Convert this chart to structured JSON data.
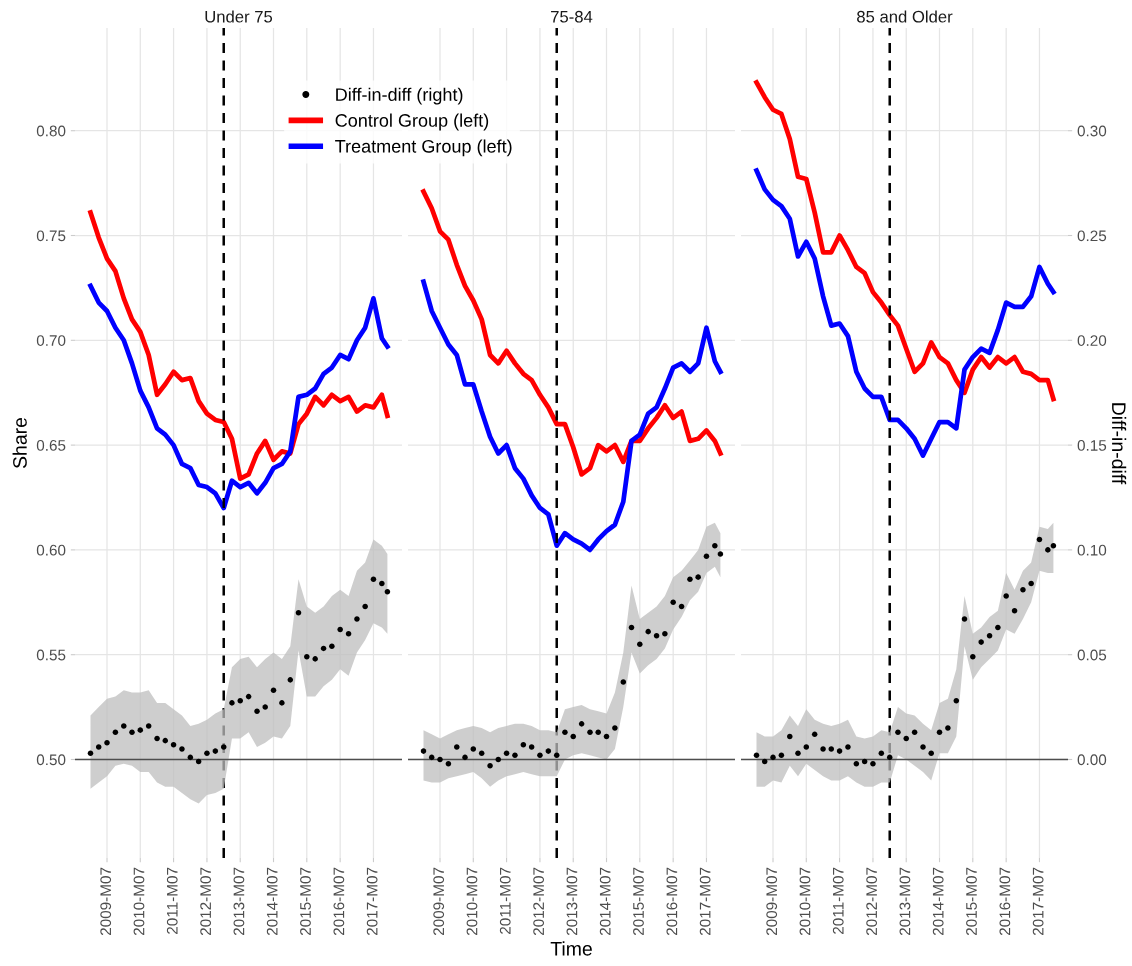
{
  "chart_data": [
    {
      "type": "line",
      "title": "Under 75",
      "ylabel": "Share",
      "legend": "top right",
      "grid": true,
      "tick_labels": [
        "x",
        "y"
      ],
      "x": [
        "2009-01",
        "2009-04",
        "2009-07",
        "2009-10",
        "2010-01",
        "2010-04",
        "2010-07",
        "2010-10",
        "2011-01",
        "2011-04",
        "2011-07",
        "2011-10",
        "2012-01",
        "2012-04",
        "2012-07",
        "2012-10",
        "2013-01",
        "2013-04",
        "2013-07",
        "2013-10",
        "2014-01",
        "2014-04",
        "2014-07",
        "2014-10",
        "2015-01",
        "2015-04",
        "2015-07",
        "2015-10",
        "2016-01",
        "2016-04",
        "2016-07",
        "2016-10",
        "2017-01",
        "2017-04",
        "2017-07",
        "2017-10",
        "2017-12"
      ],
      "series": [
        {
          "name": "Diff-in-diff (right)",
          "type": "scatter",
          "axis": "y2",
          "marker": "circle",
          "color": "#000000",
          "values": [
            0.003,
            0.006,
            0.008,
            0.013,
            0.016,
            0.013,
            0.014,
            0.016,
            0.01,
            0.009,
            0.007,
            0.005,
            0.001,
            -0.001,
            0.003,
            0.004,
            0.006,
            0.027,
            0.028,
            0.03,
            0.023,
            0.025,
            0.033,
            0.027,
            0.038,
            0.07,
            0.049,
            0.048,
            0.053,
            0.054,
            0.062,
            0.06,
            0.067,
            0.073,
            0.086,
            0.084,
            0.08
          ],
          "lower": [
            -0.014,
            -0.011,
            -0.008,
            -0.003,
            -0.002,
            -0.003,
            -0.006,
            -0.006,
            -0.011,
            -0.013,
            -0.013,
            -0.016,
            -0.019,
            -0.021,
            -0.017,
            -0.016,
            -0.014,
            0.01,
            0.01,
            0.013,
            0.006,
            0.008,
            0.011,
            0.01,
            0.016,
            0.052,
            0.03,
            0.03,
            0.035,
            0.038,
            0.043,
            0.04,
            0.051,
            0.057,
            0.065,
            0.063,
            0.06
          ],
          "upper": [
            0.021,
            0.025,
            0.029,
            0.03,
            0.033,
            0.032,
            0.032,
            0.033,
            0.027,
            0.027,
            0.024,
            0.021,
            0.016,
            0.017,
            0.019,
            0.022,
            0.024,
            0.044,
            0.048,
            0.049,
            0.044,
            0.048,
            0.051,
            0.048,
            0.054,
            0.086,
            0.073,
            0.07,
            0.073,
            0.078,
            0.081,
            0.078,
            0.09,
            0.094,
            0.105,
            0.102,
            0.098
          ]
        },
        {
          "name": "Control Group (left)",
          "color": "#ff0000",
          "values": [
            0.761,
            0.749,
            0.739,
            0.733,
            0.72,
            0.71,
            0.704,
            0.693,
            0.674,
            0.679,
            0.685,
            0.681,
            0.682,
            0.671,
            0.665,
            0.662,
            0.661,
            0.653,
            0.634,
            0.636,
            0.646,
            0.652,
            0.643,
            0.647,
            0.646,
            0.66,
            0.665,
            0.673,
            0.669,
            0.674,
            0.671,
            0.673,
            0.666,
            0.669,
            0.668,
            0.674,
            0.664
          ]
        },
        {
          "name": "Treatment Group (left)",
          "color": "#0000ff",
          "values": [
            0.726,
            0.718,
            0.714,
            0.706,
            0.7,
            0.689,
            0.676,
            0.668,
            0.658,
            0.655,
            0.65,
            0.641,
            0.639,
            0.631,
            0.63,
            0.627,
            0.62,
            0.633,
            0.63,
            0.632,
            0.627,
            0.632,
            0.639,
            0.641,
            0.647,
            0.673,
            0.674,
            0.677,
            0.684,
            0.687,
            0.693,
            0.691,
            0.7,
            0.706,
            0.72,
            0.701,
            0.697
          ]
        }
      ],
      "xlim": [
        "2008-07-15",
        "2018-05-10"
      ],
      "xticks": [
        {
          "value": "2009-07",
          "label": "2009-M07"
        },
        {
          "value": "2010-07",
          "label": "2010-M07"
        },
        {
          "value": "2011-07",
          "label": "2011-M07"
        },
        {
          "value": "2012-07",
          "label": "2012-M07"
        },
        {
          "value": "2013-07",
          "label": "2013-M07"
        },
        {
          "value": "2014-07",
          "label": "2014-M07"
        },
        {
          "value": "2015-07",
          "label": "2015-M07"
        },
        {
          "value": "2016-07",
          "label": "2016-M07"
        },
        {
          "value": "2017-07",
          "label": "2017-M07"
        }
      ],
      "ylim": [
        0.453,
        0.849
      ],
      "yticks": [
        {
          "value": 0.5,
          "label": "0.50"
        },
        {
          "value": 0.55,
          "label": "0.55"
        },
        {
          "value": 0.6,
          "label": "0.60"
        },
        {
          "value": 0.65,
          "label": "0.65"
        },
        {
          "value": 0.7,
          "label": "0.70"
        },
        {
          "value": 0.75,
          "label": "0.75"
        },
        {
          "value": 0.8,
          "label": "0.80"
        }
      ],
      "y2lim": [
        -0.047,
        0.349
      ],
      "ref_lines": [
        {
          "axis": "x",
          "value": "2013-01",
          "line_style": "dashed",
          "color": "#000000"
        },
        {
          "axis": "y2",
          "value": 0,
          "color": "#4d4d4d"
        }
      ]
    },
    {
      "type": "line",
      "title": "75-84",
      "xlabel": "Time",
      "grid": true,
      "tick_labels": [
        "x"
      ],
      "x": [
        "2009-01",
        "2009-04",
        "2009-07",
        "2009-10",
        "2010-01",
        "2010-04",
        "2010-07",
        "2010-10",
        "2011-01",
        "2011-04",
        "2011-07",
        "2011-10",
        "2012-01",
        "2012-04",
        "2012-07",
        "2012-10",
        "2013-01",
        "2013-04",
        "2013-07",
        "2013-10",
        "2014-01",
        "2014-04",
        "2014-07",
        "2014-10",
        "2015-01",
        "2015-04",
        "2015-07",
        "2015-10",
        "2016-01",
        "2016-04",
        "2016-07",
        "2016-10",
        "2017-01",
        "2017-04",
        "2017-07",
        "2017-10",
        "2017-12"
      ],
      "series": [
        {
          "type": "scatter",
          "axis": "y2",
          "marker": "circle",
          "color": "#000000",
          "values": [
            0.004,
            0.001,
            0.0,
            -0.002,
            0.006,
            0.001,
            0.005,
            0.003,
            -0.003,
            0.0,
            0.003,
            0.002,
            0.007,
            0.006,
            0.002,
            0.004,
            0.002,
            0.013,
            0.011,
            0.017,
            0.013,
            0.013,
            0.011,
            0.015,
            0.037,
            0.063,
            0.055,
            0.061,
            0.059,
            0.06,
            0.075,
            0.073,
            0.086,
            0.087,
            0.097,
            0.102,
            0.098
          ],
          "lower": [
            -0.01,
            -0.011,
            -0.011,
            -0.009,
            -0.008,
            -0.007,
            -0.006,
            -0.009,
            -0.013,
            -0.01,
            -0.008,
            -0.007,
            -0.006,
            -0.007,
            -0.008,
            -0.008,
            -0.008,
            0.0,
            0.002,
            0.003,
            0.002,
            0.001,
            0.0,
            0.005,
            0.025,
            0.051,
            0.041,
            0.045,
            0.048,
            0.053,
            0.062,
            0.068,
            0.076,
            0.08,
            0.089,
            0.092,
            0.087
          ],
          "upper": [
            0.014,
            0.012,
            0.01,
            0.012,
            0.014,
            0.015,
            0.016,
            0.015,
            0.013,
            0.015,
            0.016,
            0.017,
            0.017,
            0.016,
            0.014,
            0.014,
            0.013,
            0.024,
            0.025,
            0.026,
            0.024,
            0.023,
            0.022,
            0.032,
            0.051,
            0.083,
            0.067,
            0.07,
            0.073,
            0.078,
            0.087,
            0.09,
            0.095,
            0.1,
            0.111,
            0.113,
            0.108
          ]
        },
        {
          "color": "#ff0000",
          "values": [
            0.771,
            0.763,
            0.752,
            0.748,
            0.736,
            0.726,
            0.719,
            0.71,
            0.693,
            0.689,
            0.695,
            0.689,
            0.684,
            0.681,
            0.674,
            0.668,
            0.66,
            0.66,
            0.649,
            0.636,
            0.639,
            0.65,
            0.647,
            0.65,
            0.642,
            0.652,
            0.652,
            0.658,
            0.663,
            0.669,
            0.663,
            0.666,
            0.652,
            0.653,
            0.657,
            0.652,
            0.646
          ]
        },
        {
          "color": "#0000ff",
          "values": [
            0.728,
            0.714,
            0.706,
            0.698,
            0.693,
            0.679,
            0.679,
            0.666,
            0.654,
            0.646,
            0.65,
            0.639,
            0.634,
            0.626,
            0.62,
            0.617,
            0.602,
            0.608,
            0.605,
            0.603,
            0.6,
            0.605,
            0.609,
            0.612,
            0.623,
            0.652,
            0.655,
            0.665,
            0.668,
            0.677,
            0.687,
            0.689,
            0.685,
            0.689,
            0.706,
            0.69,
            0.685
          ]
        }
      ],
      "xlim": [
        "2008-07-15",
        "2018-05-10"
      ],
      "xticks": [
        {
          "value": "2009-07",
          "label": "2009-M07"
        },
        {
          "value": "2010-07",
          "label": "2010-M07"
        },
        {
          "value": "2011-07",
          "label": "2011-M07"
        },
        {
          "value": "2012-07",
          "label": "2012-M07"
        },
        {
          "value": "2013-07",
          "label": "2013-M07"
        },
        {
          "value": "2014-07",
          "label": "2014-M07"
        },
        {
          "value": "2015-07",
          "label": "2015-M07"
        },
        {
          "value": "2016-07",
          "label": "2016-M07"
        },
        {
          "value": "2017-07",
          "label": "2017-M07"
        }
      ],
      "ylim": [
        0.453,
        0.849
      ],
      "y2lim": [
        -0.047,
        0.349
      ],
      "ref_lines": [
        {
          "axis": "x",
          "value": "2013-01",
          "line_style": "dashed",
          "color": "#000000"
        },
        {
          "axis": "y2",
          "value": 0,
          "color": "#4d4d4d"
        }
      ]
    },
    {
      "type": "line",
      "title": "85 and Older",
      "y2label": "Diff-in-diff",
      "grid": true,
      "tick_labels": [
        "x",
        "y2"
      ],
      "x": [
        "2009-01",
        "2009-04",
        "2009-07",
        "2009-10",
        "2010-01",
        "2010-04",
        "2010-07",
        "2010-10",
        "2011-01",
        "2011-04",
        "2011-07",
        "2011-10",
        "2012-01",
        "2012-04",
        "2012-07",
        "2012-10",
        "2013-01",
        "2013-04",
        "2013-07",
        "2013-10",
        "2014-01",
        "2014-04",
        "2014-07",
        "2014-10",
        "2015-01",
        "2015-04",
        "2015-07",
        "2015-10",
        "2016-01",
        "2016-04",
        "2016-07",
        "2016-10",
        "2017-01",
        "2017-04",
        "2017-07",
        "2017-10",
        "2017-12"
      ],
      "series": [
        {
          "type": "scatter",
          "axis": "y2",
          "marker": "circle",
          "color": "#000000",
          "values": [
            0.002,
            -0.001,
            0.001,
            0.002,
            0.011,
            0.003,
            0.006,
            0.012,
            0.005,
            0.005,
            0.004,
            0.006,
            -0.002,
            -0.001,
            -0.002,
            0.003,
            0.001,
            0.013,
            0.01,
            0.013,
            0.006,
            0.003,
            0.013,
            0.015,
            0.028,
            0.067,
            0.049,
            0.056,
            0.059,
            0.063,
            0.078,
            0.071,
            0.081,
            0.084,
            0.105,
            0.1,
            0.102
          ],
          "lower": [
            -0.013,
            -0.013,
            -0.01,
            -0.011,
            -0.003,
            -0.008,
            -0.002,
            -0.005,
            -0.008,
            -0.01,
            -0.01,
            -0.008,
            -0.011,
            -0.013,
            -0.013,
            -0.011,
            -0.011,
            0.002,
            0.0,
            -0.003,
            -0.006,
            -0.01,
            0.003,
            0.003,
            0.011,
            0.054,
            0.038,
            0.044,
            0.048,
            0.052,
            0.062,
            0.06,
            0.067,
            0.075,
            0.09,
            0.089,
            0.089
          ],
          "upper": [
            0.013,
            0.011,
            0.011,
            0.014,
            0.021,
            0.016,
            0.024,
            0.019,
            0.017,
            0.016,
            0.017,
            0.019,
            0.011,
            0.01,
            0.011,
            0.014,
            0.013,
            0.025,
            0.022,
            0.021,
            0.017,
            0.014,
            0.027,
            0.029,
            0.043,
            0.078,
            0.06,
            0.063,
            0.068,
            0.071,
            0.089,
            0.081,
            0.09,
            0.094,
            0.111,
            0.11,
            0.113
          ]
        },
        {
          "color": "#ff0000",
          "values": [
            0.823,
            0.816,
            0.81,
            0.808,
            0.796,
            0.778,
            0.777,
            0.761,
            0.742,
            0.742,
            0.75,
            0.743,
            0.735,
            0.732,
            0.723,
            0.718,
            0.712,
            0.707,
            0.696,
            0.685,
            0.689,
            0.699,
            0.692,
            0.689,
            0.681,
            0.675,
            0.686,
            0.692,
            0.687,
            0.692,
            0.689,
            0.692,
            0.685,
            0.684,
            0.681,
            0.681,
            0.672
          ]
        },
        {
          "color": "#0000ff",
          "values": [
            0.781,
            0.772,
            0.767,
            0.764,
            0.758,
            0.74,
            0.747,
            0.739,
            0.721,
            0.707,
            0.708,
            0.702,
            0.685,
            0.677,
            0.673,
            0.673,
            0.662,
            0.662,
            0.658,
            0.653,
            0.645,
            0.653,
            0.661,
            0.661,
            0.658,
            0.686,
            0.692,
            0.696,
            0.694,
            0.705,
            0.718,
            0.716,
            0.716,
            0.721,
            0.735,
            0.727,
            0.723
          ]
        }
      ],
      "xlim": [
        "2008-07-15",
        "2018-05-10"
      ],
      "xticks": [
        {
          "value": "2009-07",
          "label": "2009-M07"
        },
        {
          "value": "2010-07",
          "label": "2010-M07"
        },
        {
          "value": "2011-07",
          "label": "2011-M07"
        },
        {
          "value": "2012-07",
          "label": "2012-M07"
        },
        {
          "value": "2013-07",
          "label": "2013-M07"
        },
        {
          "value": "2014-07",
          "label": "2014-M07"
        },
        {
          "value": "2015-07",
          "label": "2015-M07"
        },
        {
          "value": "2016-07",
          "label": "2016-M07"
        },
        {
          "value": "2017-07",
          "label": "2017-M07"
        }
      ],
      "ylim": [
        0.453,
        0.849
      ],
      "y2lim": [
        -0.047,
        0.349
      ],
      "y2ticks": [
        {
          "value": 0,
          "label": "0.00"
        },
        {
          "value": 0.05,
          "label": "0.05"
        },
        {
          "value": 0.1,
          "label": "0.10"
        },
        {
          "value": 0.15,
          "label": "0.15"
        },
        {
          "value": 0.2,
          "label": "0.20"
        },
        {
          "value": 0.25,
          "label": "0.25"
        },
        {
          "value": 0.3,
          "label": "0.30"
        }
      ],
      "ref_lines": [
        {
          "axis": "x",
          "value": "2013-01",
          "line_style": "dashed",
          "color": "#000000"
        },
        {
          "axis": "y2",
          "value": 0,
          "color": "#4d4d4d"
        }
      ]
    }
  ]
}
